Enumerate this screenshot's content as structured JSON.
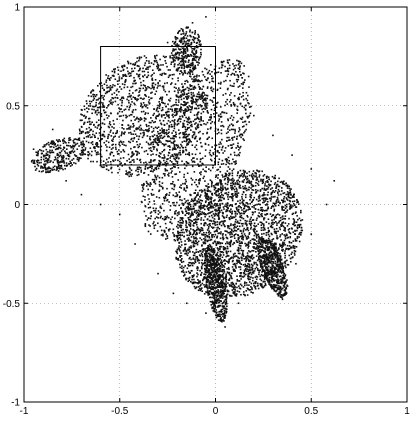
{
  "chart_data": {
    "type": "scatter",
    "title": "",
    "xlabel": "",
    "ylabel": "",
    "xlim": [
      -1,
      1
    ],
    "ylim": [
      -1,
      1
    ],
    "grid": true,
    "x_ticks": [
      -1,
      -0.5,
      0,
      0.5,
      1
    ],
    "y_ticks": [
      -1,
      -0.5,
      0,
      0.5,
      1
    ],
    "x_tick_labels": [
      "-1",
      "-0.5",
      "0",
      "0.5",
      "1"
    ],
    "y_tick_labels": [
      "-1",
      "-0.5",
      "0",
      "0.5",
      "1"
    ],
    "marker_color": "#111111",
    "series": [
      {
        "values_description_omitted": true,
        "points": [
          [
            -0.12,
            0.92
          ],
          [
            -0.05,
            0.95
          ],
          [
            -0.25,
            0.82
          ],
          [
            -0.4,
            0.7
          ],
          [
            -0.55,
            0.58
          ],
          [
            -0.7,
            0.48
          ],
          [
            -0.85,
            0.38
          ],
          [
            -0.95,
            0.28
          ],
          [
            -0.88,
            0.18
          ],
          [
            -0.78,
            0.12
          ],
          [
            -0.7,
            0.05
          ],
          [
            -0.6,
            0.0
          ],
          [
            -0.5,
            -0.05
          ],
          [
            -0.42,
            -0.2
          ],
          [
            -0.3,
            -0.35
          ],
          [
            -0.22,
            -0.45
          ],
          [
            -0.15,
            -0.5
          ],
          [
            -0.05,
            -0.55
          ],
          [
            0.05,
            -0.62
          ],
          [
            0.12,
            -0.5
          ],
          [
            0.2,
            -0.4
          ],
          [
            0.28,
            -0.35
          ],
          [
            0.35,
            -0.48
          ],
          [
            0.42,
            -0.3
          ],
          [
            0.5,
            -0.15
          ],
          [
            0.58,
            0.0
          ],
          [
            0.62,
            0.12
          ],
          [
            0.5,
            0.18
          ],
          [
            0.4,
            0.25
          ],
          [
            0.3,
            0.35
          ],
          [
            0.2,
            0.45
          ],
          [
            0.1,
            0.55
          ],
          [
            0.0,
            0.7
          ],
          [
            -0.1,
            0.78
          ],
          [
            -0.3,
            0.6
          ],
          [
            -0.45,
            0.45
          ],
          [
            -0.6,
            0.35
          ],
          [
            -0.3,
            0.3
          ],
          [
            -0.1,
            0.3
          ],
          [
            0.0,
            0.1
          ],
          [
            0.1,
            -0.1
          ],
          [
            0.2,
            -0.2
          ],
          [
            0.3,
            -0.1
          ],
          [
            0.15,
            0.15
          ],
          [
            -0.2,
            0.05
          ],
          [
            -0.35,
            0.15
          ],
          [
            0.05,
            -0.3
          ],
          [
            0.25,
            0.05
          ]
        ]
      }
    ],
    "clusters": [
      {
        "note": "upper-left sparse lobe",
        "cx": -0.38,
        "cy": 0.45,
        "rx": 0.36,
        "ry": 0.28,
        "angle": 35,
        "count": 1300
      },
      {
        "note": "central band",
        "cx": -0.1,
        "cy": 0.28,
        "rx": 0.22,
        "ry": 0.5,
        "angle": -25,
        "count": 1100
      },
      {
        "note": "lower-right dense lobe",
        "cx": 0.12,
        "cy": -0.15,
        "rx": 0.36,
        "ry": 0.3,
        "angle": 40,
        "count": 2400
      },
      {
        "note": "lower spike",
        "cx": 0.0,
        "cy": -0.4,
        "rx": 0.05,
        "ry": 0.2,
        "angle": 10,
        "count": 500
      },
      {
        "note": "right spike",
        "cx": 0.3,
        "cy": -0.32,
        "rx": 0.06,
        "ry": 0.16,
        "angle": 20,
        "count": 450
      },
      {
        "note": "top ridge",
        "cx": -0.15,
        "cy": 0.78,
        "rx": 0.08,
        "ry": 0.12,
        "angle": 0,
        "count": 280
      },
      {
        "note": "left tail",
        "cx": -0.82,
        "cy": 0.25,
        "rx": 0.15,
        "ry": 0.08,
        "angle": 20,
        "count": 300
      }
    ],
    "annotation_box": {
      "x0": -0.6,
      "x1": 0.0,
      "y0": 0.2,
      "y1": 0.8
    }
  }
}
